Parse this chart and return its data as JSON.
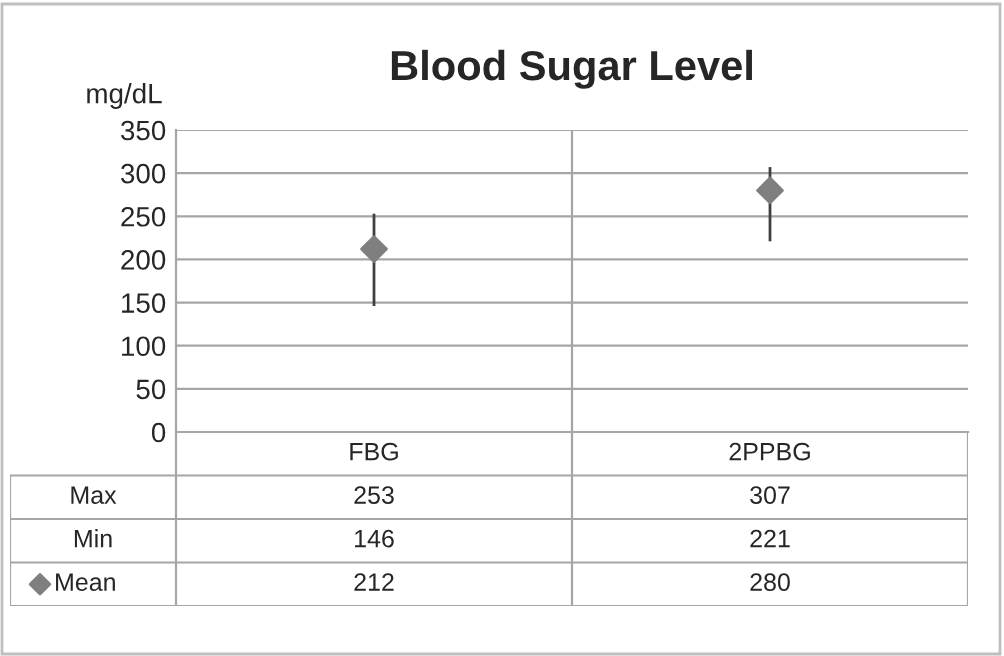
{
  "chart_data": {
    "type": "scatter",
    "title": "Blood Sugar Level",
    "ylabel": "mg/dL",
    "categories": [
      "FBG",
      "2PPBG"
    ],
    "series": [
      {
        "name": "Mean",
        "color": "#7f7f7f",
        "values": [
          212,
          280
        ],
        "errors": [
          [
            146,
            253
          ],
          [
            221,
            307
          ]
        ]
      }
    ],
    "annotations": [
      "Max",
      "253",
      "307",
      "Min",
      "146",
      "221"
    ],
    "ylim": [
      0,
      350
    ],
    "yticks": [
      0,
      50,
      100,
      150,
      200,
      250,
      300,
      350
    ],
    "grid": "y",
    "marker": "diamond",
    "data_labels": true,
    "legend": "bottom"
  }
}
